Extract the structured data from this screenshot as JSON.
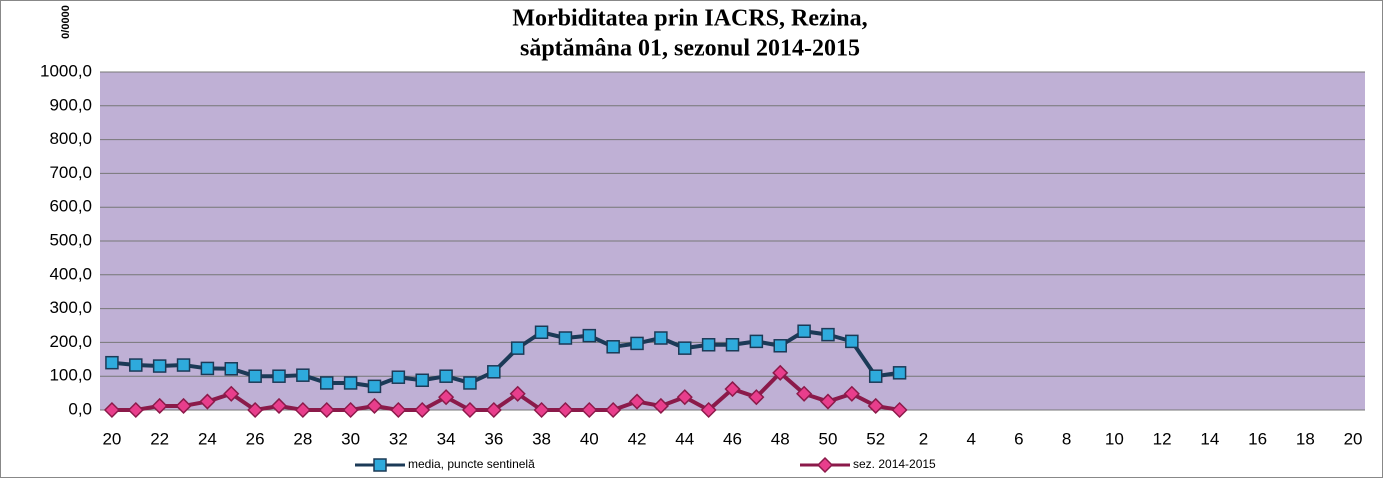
{
  "chart_data": {
    "type": "line",
    "title": "Morbiditatea prin IACRS, Rezina,",
    "subtitle": "săptămâna 01, sezonul  2014-2015",
    "y_label": "0/0000",
    "categories": [
      "20",
      null,
      "22",
      null,
      "24",
      null,
      "26",
      null,
      "28",
      null,
      "30",
      null,
      "32",
      null,
      "34",
      null,
      "36",
      null,
      "38",
      null,
      "40",
      null,
      "42",
      null,
      "44",
      null,
      "46",
      null,
      "48",
      null,
      "50",
      null,
      "52",
      null,
      "2",
      null,
      "4",
      null,
      "6",
      null,
      "8",
      null,
      "10",
      null,
      "12",
      null,
      "14",
      null,
      "16",
      null,
      "18",
      null,
      "20"
    ],
    "series": [
      {
        "name": "media, puncte sentinelă",
        "color": "#2eaadc",
        "line_color": "#1b3a57",
        "marker": "square",
        "values": [
          140,
          133,
          130,
          133,
          123,
          122,
          100,
          100,
          103,
          80,
          80,
          70,
          97,
          88,
          100,
          80,
          113,
          183,
          230,
          213,
          220,
          187,
          197,
          213,
          183,
          193,
          193,
          203,
          190,
          233,
          223,
          203,
          100,
          110,
          null,
          null,
          null,
          null,
          null,
          null,
          null,
          null,
          null,
          null,
          null,
          null,
          null,
          null,
          null,
          null,
          null,
          null,
          null
        ]
      },
      {
        "name": "sez. 2014-2015",
        "color": "#e83e8c",
        "line_color": "#8b1a4a",
        "marker": "diamond",
        "values": [
          0,
          0,
          12,
          12,
          25,
          48,
          0,
          12,
          0,
          0,
          0,
          12,
          0,
          0,
          38,
          0,
          0,
          48,
          0,
          0,
          0,
          0,
          25,
          12,
          38,
          0,
          62,
          38,
          110,
          48,
          25,
          48,
          12,
          0,
          null,
          null,
          null,
          null,
          null,
          null,
          null,
          null,
          null,
          null,
          null,
          null,
          null,
          null,
          null,
          null,
          null,
          null,
          null
        ]
      }
    ],
    "ylim": [
      0,
      1000
    ],
    "yticks": [
      {
        "value": 0,
        "label": "0,0"
      },
      {
        "value": 100,
        "label": "100,0"
      },
      {
        "value": 200,
        "label": "200,0"
      },
      {
        "value": 300,
        "label": "300,0"
      },
      {
        "value": 400,
        "label": "400,0"
      },
      {
        "value": 500,
        "label": "500,0"
      },
      {
        "value": 600,
        "label": "600,0"
      },
      {
        "value": 700,
        "label": "700,0"
      },
      {
        "value": 800,
        "label": "800,0"
      },
      {
        "value": 900,
        "label": "900,0"
      },
      {
        "value": 1000,
        "label": "1000,0"
      }
    ],
    "grid": true,
    "plot_background": "#bfb0d5",
    "legend": "bottom"
  }
}
